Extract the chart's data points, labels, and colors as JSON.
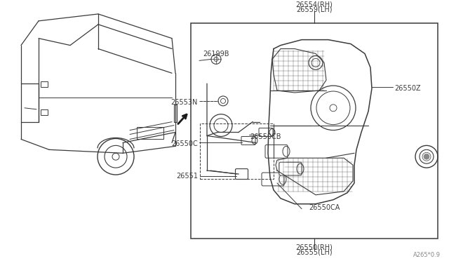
{
  "bg_color": "#ffffff",
  "line_color": "#3a3a3a",
  "fig_width": 6.4,
  "fig_height": 3.72,
  "watermark": "A265*0.9",
  "label_26550rh": "26550(RH)",
  "label_26555lh": "26555(LH)",
  "label_26551": "26551",
  "label_26550CA": "26550CA",
  "label_26550C": "26550C",
  "label_26550CB": "26550CB",
  "label_26553N": "26553N",
  "label_26199B": "26199B",
  "label_26550Z": "26550Z",
  "label_26554rh": "26554(RH)",
  "label_26559lh": "26559(LH)"
}
